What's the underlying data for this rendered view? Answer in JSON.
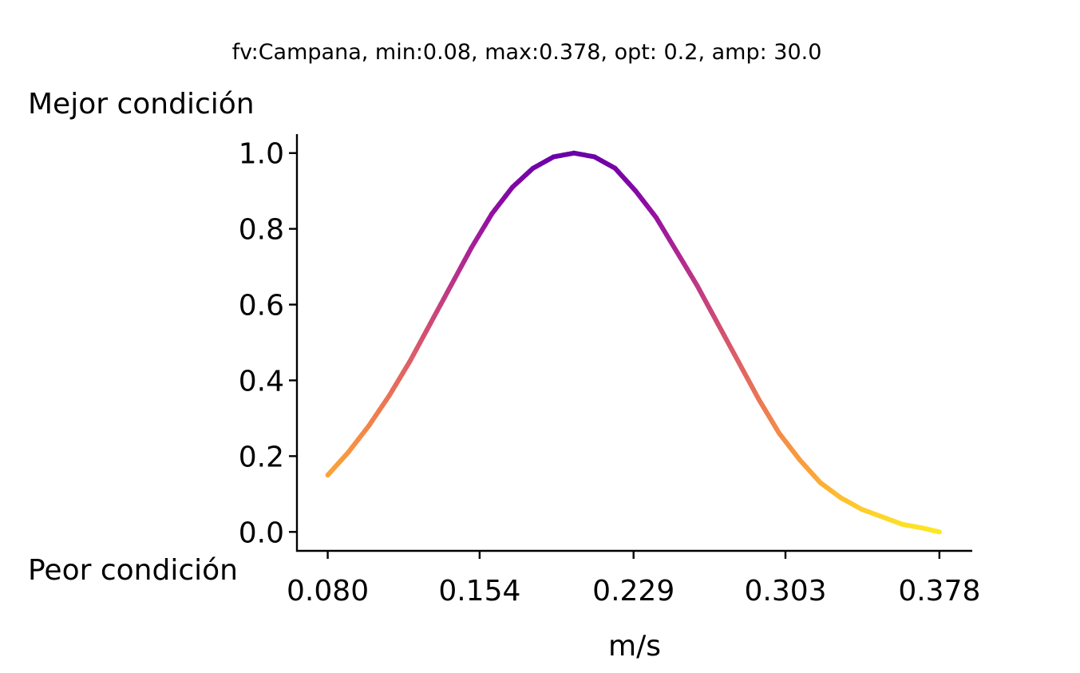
{
  "chart_data": {
    "type": "line",
    "title": "fv:Campana, min:0.08, max:0.378, opt: 0.2, amp: 30.0",
    "xlabel": "m/s",
    "ylabel": "",
    "top_label": "Mejor condición",
    "bottom_label": "Peor condición",
    "xlim": [
      0.065,
      0.394
    ],
    "ylim": [
      -0.05,
      1.05
    ],
    "x_ticks": [
      0.08,
      0.154,
      0.229,
      0.303,
      0.378
    ],
    "x_tick_labels": [
      "0.080",
      "0.154",
      "0.229",
      "0.303",
      "0.378"
    ],
    "y_ticks": [
      0.0,
      0.2,
      0.4,
      0.6,
      0.8,
      1.0
    ],
    "y_tick_labels": [
      "0.0",
      "0.2",
      "0.4",
      "0.6",
      "0.8",
      "1.0"
    ],
    "grid": false,
    "colormap": "plasma-partial",
    "colors": [
      "#fde725",
      "#fca636",
      "#f2844b",
      "#e16462",
      "#cc4778",
      "#b12a90",
      "#8f0da4",
      "#6a00a8"
    ],
    "series": [
      {
        "x": [
          0.08,
          0.09,
          0.1,
          0.11,
          0.12,
          0.13,
          0.14,
          0.15,
          0.16,
          0.17,
          0.18,
          0.19,
          0.2,
          0.21,
          0.22,
          0.23,
          0.24,
          0.25,
          0.26,
          0.27,
          0.28,
          0.29,
          0.3,
          0.31,
          0.32,
          0.33,
          0.34,
          0.35,
          0.36,
          0.37,
          0.378
        ],
        "y": [
          0.15,
          0.21,
          0.28,
          0.36,
          0.45,
          0.55,
          0.65,
          0.75,
          0.84,
          0.91,
          0.96,
          0.99,
          1.0,
          0.99,
          0.96,
          0.9,
          0.83,
          0.74,
          0.65,
          0.55,
          0.45,
          0.35,
          0.26,
          0.19,
          0.13,
          0.09,
          0.06,
          0.04,
          0.02,
          0.01,
          0.0
        ]
      }
    ]
  }
}
